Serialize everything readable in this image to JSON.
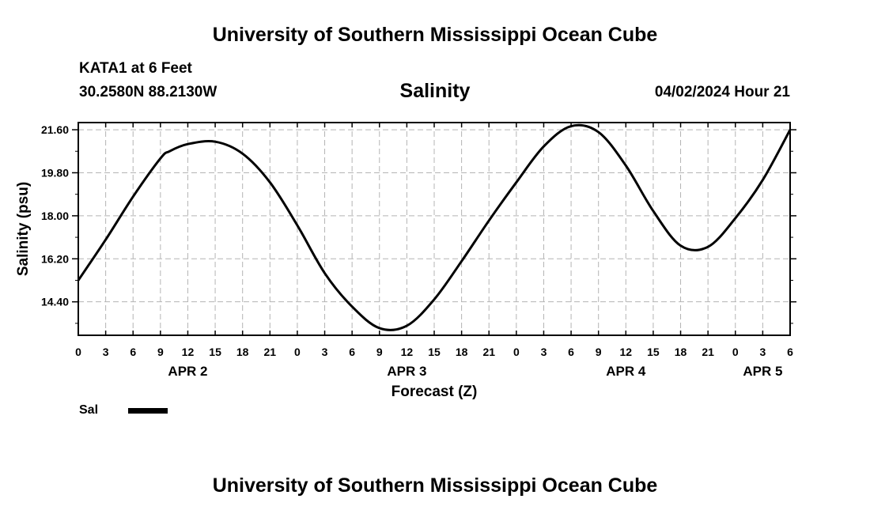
{
  "header": {
    "title": "University of Southern Mississippi Ocean Cube",
    "station": "KATA1 at 6 Feet",
    "coordinates": "30.2580N  88.2130W",
    "chart_title": "Salinity",
    "datetime": "04/02/2024 Hour 21"
  },
  "footer": {
    "title": "University of Southern Mississippi Ocean Cube"
  },
  "legend": {
    "label": "Sal",
    "color": "#000000"
  },
  "chart_data": {
    "type": "line",
    "title": "Salinity",
    "xlabel": "Forecast (Z)",
    "ylabel": "Salinity (psu)",
    "xlim": [
      0,
      78
    ],
    "ylim": [
      13.0,
      21.9
    ],
    "yticks": [
      14.4,
      16.2,
      18.0,
      19.8,
      21.6
    ],
    "ytick_labels": [
      "14.40",
      "16.20",
      "18.00",
      "19.80",
      "21.60"
    ],
    "xticks": [
      0,
      3,
      6,
      9,
      12,
      15,
      18,
      21,
      24,
      27,
      30,
      33,
      36,
      39,
      42,
      45,
      48,
      51,
      54,
      57,
      60,
      63,
      66,
      69,
      72,
      75,
      78
    ],
    "xtick_labels": [
      "0",
      "3",
      "6",
      "9",
      "12",
      "15",
      "18",
      "21",
      "0",
      "3",
      "6",
      "9",
      "12",
      "15",
      "18",
      "21",
      "0",
      "3",
      "6",
      "9",
      "12",
      "15",
      "18",
      "21",
      "0",
      "3",
      "6"
    ],
    "day_labels": [
      {
        "hour": 12,
        "label": "APR 2"
      },
      {
        "hour": 36,
        "label": "APR 3"
      },
      {
        "hour": 60,
        "label": "APR 4"
      },
      {
        "hour": 75,
        "label": "APR 5"
      }
    ],
    "grid": true,
    "series": [
      {
        "name": "Sal",
        "color": "#000000",
        "x": [
          0,
          3,
          6,
          9,
          10,
          12,
          15,
          18,
          21,
          24,
          27,
          30,
          33,
          36,
          39,
          42,
          45,
          48,
          51,
          54,
          57,
          60,
          63,
          66,
          69,
          72,
          75,
          78
        ],
        "y": [
          15.3,
          17.0,
          18.8,
          20.4,
          20.7,
          21.0,
          21.1,
          20.6,
          19.4,
          17.6,
          15.6,
          14.2,
          13.3,
          13.4,
          14.5,
          16.1,
          17.8,
          19.4,
          20.9,
          21.75,
          21.5,
          20.1,
          18.2,
          16.75,
          16.7,
          17.9,
          19.5,
          21.6
        ]
      }
    ]
  }
}
